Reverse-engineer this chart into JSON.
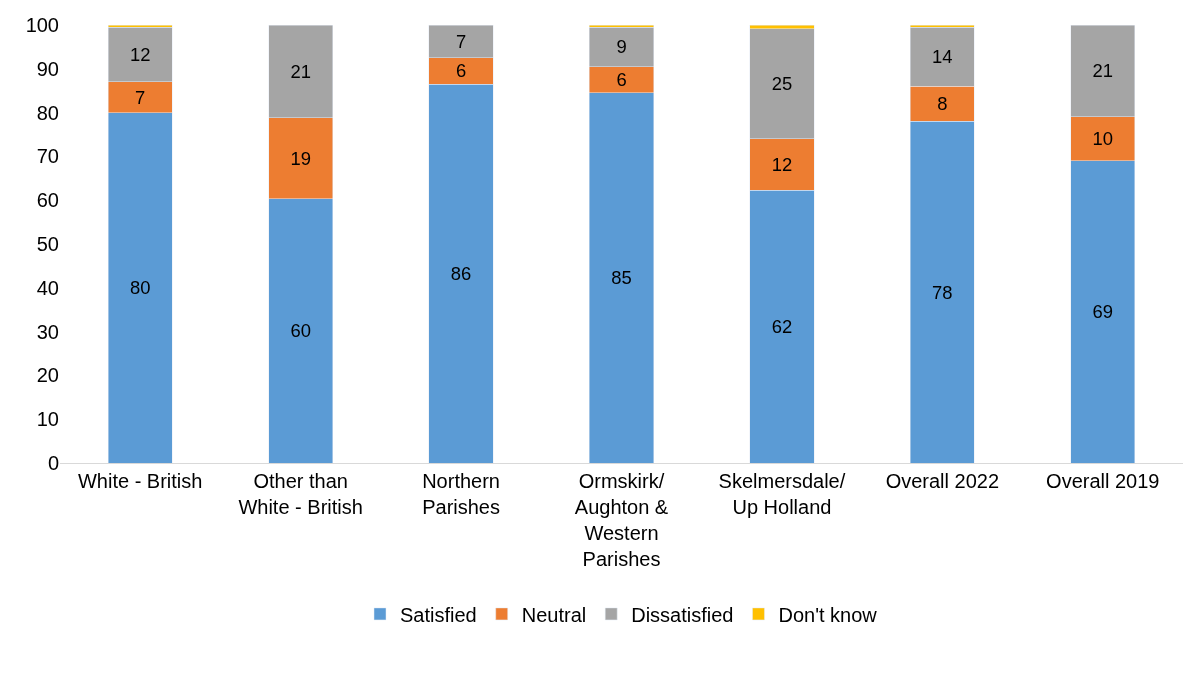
{
  "chart_data": {
    "type": "bar",
    "stacked": true,
    "categories": [
      "White - British",
      "Other than\nWhite - British",
      "Northern\nParishes",
      "Ormskirk/\nAughton &\nWestern\nParishes",
      "Skelmersdale/\nUp Holland",
      "Overall 2022",
      "Overall 2019"
    ],
    "series": [
      {
        "name": "Satisfied",
        "color": "#5b9bd5",
        "values": [
          80,
          60.3,
          86.5,
          84.5,
          62.3,
          78,
          69
        ],
        "value_labels": [
          "80",
          "60",
          "86",
          "85",
          "62",
          "78",
          "69"
        ]
      },
      {
        "name": "Neutral",
        "color": "#ed7d31",
        "values": [
          7,
          18.5,
          6,
          6,
          11.7,
          8,
          10
        ],
        "value_labels": [
          "7",
          "19",
          "6",
          "6",
          "12",
          "8",
          "10"
        ]
      },
      {
        "name": "Dissatisfied",
        "color": "#a5a5a5",
        "values": [
          12.5,
          21.2,
          7.5,
          9,
          25.2,
          13.5,
          21
        ],
        "value_labels": [
          "12",
          "21",
          "7",
          "9",
          "25",
          "14",
          "21"
        ]
      },
      {
        "name": "Don't know",
        "color": "#ffc000",
        "values": [
          0.5,
          null,
          null,
          0.5,
          0.8,
          0.5,
          null
        ]
      }
    ],
    "ylim": [
      0,
      100
    ],
    "yticks": [
      0,
      10,
      20,
      30,
      40,
      50,
      60,
      70,
      80,
      90,
      100
    ],
    "grid": false,
    "legend": "bottom"
  }
}
